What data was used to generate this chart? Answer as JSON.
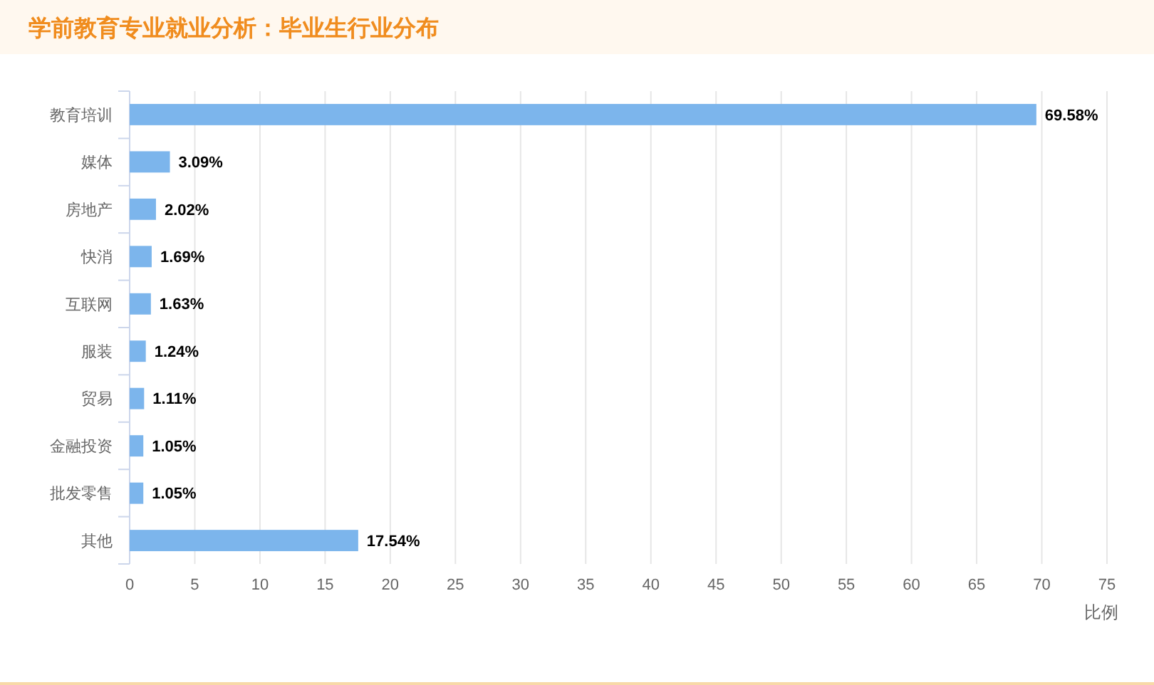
{
  "chart_data": {
    "type": "bar",
    "orientation": "horizontal",
    "title": "学前教育专业就业分析：毕业生行业分布",
    "xlabel": "比例",
    "categories": [
      "教育培训",
      "媒体",
      "房地产",
      "快消",
      "互联网",
      "服装",
      "贸易",
      "金融投资",
      "批发零售",
      "其他"
    ],
    "values": [
      69.58,
      3.09,
      2.02,
      1.69,
      1.63,
      1.24,
      1.11,
      1.05,
      1.05,
      17.54
    ],
    "value_labels": [
      "69.58%",
      "3.09%",
      "2.02%",
      "1.69%",
      "1.63%",
      "1.24%",
      "1.11%",
      "1.05%",
      "1.05%",
      "17.54%"
    ],
    "color": "#7cb5ec",
    "xlim": [
      0,
      75
    ],
    "xticks": [
      0,
      5,
      10,
      15,
      20,
      25,
      30,
      35,
      40,
      45,
      50,
      55,
      60,
      65,
      70,
      75
    ],
    "grid": "x"
  }
}
